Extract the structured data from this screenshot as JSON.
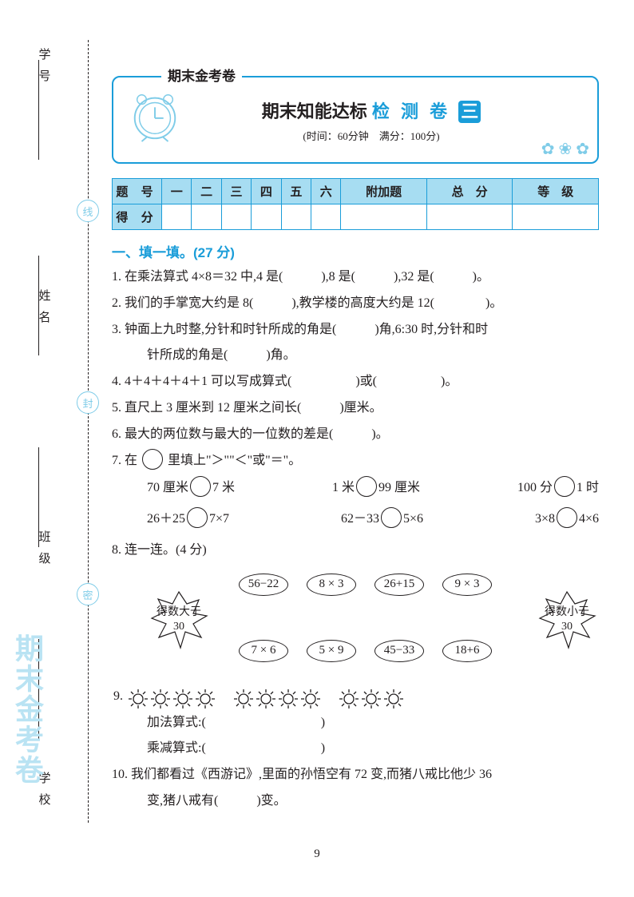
{
  "colors": {
    "accent": "#1a9dd9",
    "accent_light": "#a7ddf2",
    "badge_border": "#7fcce8",
    "text": "#231f20"
  },
  "side": {
    "labels": [
      "学号",
      "姓名",
      "班级",
      "学校"
    ],
    "badges": [
      "线",
      "封",
      "密"
    ],
    "watermark": "期末金考卷"
  },
  "header": {
    "tab": "期末金考卷",
    "title_black": "期末知能达标",
    "title_accent": "检 测 卷",
    "title_box": "三",
    "sub": "(时间：60分钟　满分：100分)"
  },
  "score_table": {
    "row1_label": "题 号",
    "cols": [
      "一",
      "二",
      "三",
      "四",
      "五",
      "六",
      "附加题",
      "总　分",
      "等　级"
    ],
    "row2_label": "得 分"
  },
  "section1_title": "一、填一填。(27 分)",
  "q1": "1. 在乘法算式 4×8＝32 中,4 是(　　　),8 是(　　　),32 是(　　　)。",
  "q2": "2. 我们的手掌宽大约是 8(　　　),教学楼的高度大约是 12(　　　　)。",
  "q3a": "3. 钟面上九时整,分针和时针所成的角是(　　　)角,6:30 时,分针和时",
  "q3b": "针所成的角是(　　　)角。",
  "q4": "4. 4＋4＋4＋4＋1 可以写成算式(　　　　　)或(　　　　　)。",
  "q5": "5. 直尺上 3 厘米到 12 厘米之间长(　　　)厘米。",
  "q6": "6. 最大的两位数与最大的一位数的差是(　　　)。",
  "q7_intro": "7. 在 ○ 里填上\">\"\"<\"或\"=\"。",
  "q7_row1": [
    "70 厘米",
    "7 米",
    "1 米",
    "99 厘米",
    "100 分",
    "1 时"
  ],
  "q7_row2": [
    "26＋25",
    "7×7",
    "62－33",
    "5×6",
    "3×8",
    "4×6"
  ],
  "q8_intro": "8. 连一连。(4 分)",
  "q8": {
    "leaf_left": "得数大于\n30",
    "leaf_right": "得数小于\n30",
    "bubbles_top": [
      "56−22",
      "8 × 3",
      "26+15",
      "9 × 3"
    ],
    "bubbles_bottom": [
      "7 × 6",
      "5 × 9",
      "45−33",
      "18+6"
    ]
  },
  "q9_label": "9.",
  "q9a": "加法算式:(　　　　　　　　　)",
  "q9b": "乘减算式:(　　　　　　　　　)",
  "q10a": "10. 我们都看过《西游记》,里面的孙悟空有 72 变,而猪八戒比他少 36",
  "q10b": "变,猪八戒有(　　　)变。",
  "page_number": "9"
}
